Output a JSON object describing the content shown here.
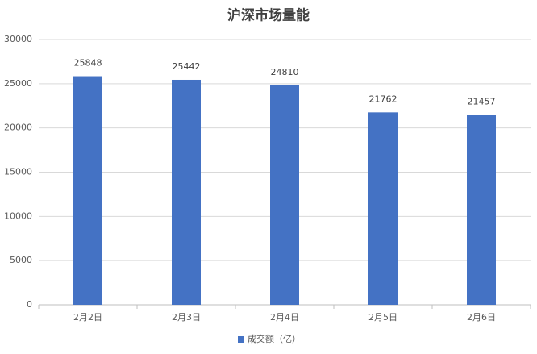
{
  "chart_data": {
    "type": "bar",
    "title": "沪深市场量能",
    "categories": [
      "2月2日",
      "2月3日",
      "2月4日",
      "2月5日",
      "2月6日"
    ],
    "series": [
      {
        "name": "成交额（亿）",
        "color": "#4472c4",
        "values": [
          25848,
          25442,
          24810,
          21762,
          21457
        ]
      }
    ],
    "ylim": [
      0,
      30000
    ],
    "yticks": [
      0,
      5000,
      10000,
      15000,
      20000,
      25000,
      30000
    ],
    "grid": true,
    "legend": "bottom",
    "data_labels": true
  }
}
